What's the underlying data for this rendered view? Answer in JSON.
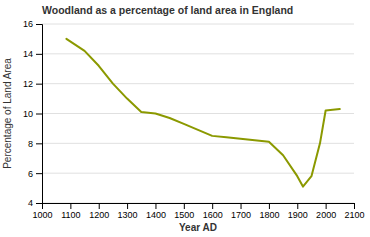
{
  "chart_data": {
    "type": "line",
    "title": "Woodland as a percentage of land area in England",
    "xlabel": "Year AD",
    "ylabel": "Percentage of Land Area",
    "x": [
      1086,
      1150,
      1200,
      1250,
      1300,
      1350,
      1400,
      1450,
      1500,
      1550,
      1600,
      1650,
      1700,
      1750,
      1800,
      1850,
      1900,
      1920,
      1950,
      1980,
      2000,
      2050
    ],
    "values": [
      15.0,
      14.2,
      13.2,
      12.0,
      11.0,
      10.1,
      10.0,
      9.7,
      9.3,
      8.9,
      8.5,
      8.4,
      8.3,
      8.2,
      8.1,
      7.2,
      5.8,
      5.1,
      5.8,
      8.0,
      10.2,
      10.3
    ],
    "color": "#8b9900",
    "xlim": [
      1000,
      2100
    ],
    "ylim": [
      4,
      16
    ],
    "xticks": [
      1000,
      1100,
      1200,
      1300,
      1400,
      1500,
      1600,
      1700,
      1800,
      1900,
      2000,
      2100
    ],
    "yticks": [
      4,
      6,
      8,
      10,
      12,
      14,
      16
    ],
    "grid": "y"
  }
}
